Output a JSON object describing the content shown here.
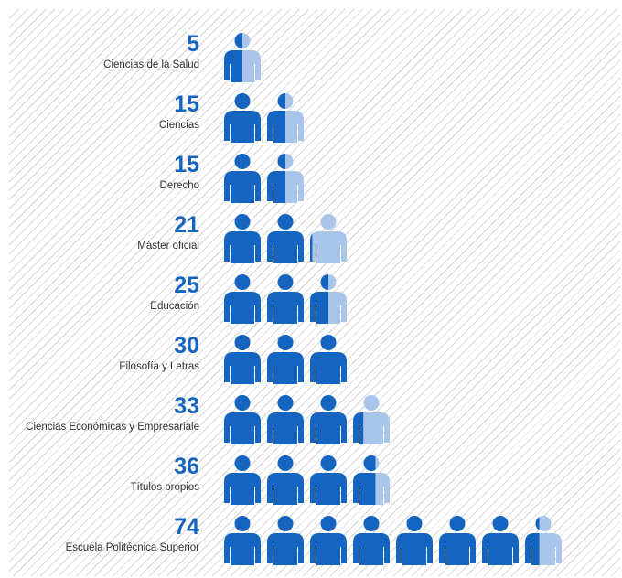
{
  "chart_data": {
    "type": "pictograph",
    "unit_per_icon": 10,
    "colors": {
      "full": "#1565c0",
      "light": "#a9c6ea"
    },
    "categories": [
      "Ciencias de la Salud",
      "Ciencias",
      "Derecho",
      "Máster oficial",
      "Educación",
      "Filosofía y Letras",
      "Ciencias Económicas y Empresariale",
      "Títulos propios",
      "Escuela Politécnica Superior"
    ],
    "values": [
      5,
      15,
      15,
      21,
      25,
      30,
      33,
      36,
      74
    ]
  }
}
